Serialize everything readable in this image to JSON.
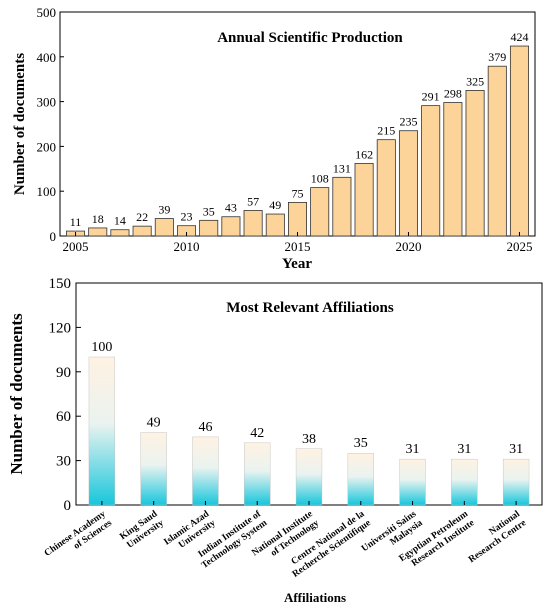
{
  "colors": {
    "top_bar_fill": "#fcd49a",
    "top_bar_stroke": "#333333",
    "bottom_bar_top": "#fff2e2",
    "bottom_bar_bottom": "#17c6dc",
    "axis": "#000000"
  },
  "chart_data": [
    {
      "type": "bar",
      "title": "Annual Scientific Production",
      "xlabel": "Year",
      "ylabel": "Number of documents",
      "x": [
        2005,
        2006,
        2007,
        2008,
        2009,
        2010,
        2011,
        2012,
        2013,
        2014,
        2015,
        2016,
        2017,
        2018,
        2019,
        2020,
        2021,
        2022,
        2023,
        2024,
        2025
      ],
      "values": [
        11,
        18,
        14,
        22,
        39,
        23,
        35,
        43,
        57,
        49,
        75,
        108,
        131,
        162,
        215,
        235,
        291,
        298,
        325,
        379,
        424
      ],
      "xticks": [
        "2005",
        "2010",
        "2015",
        "2020",
        "2025"
      ],
      "yticks": [
        "0",
        "100",
        "200",
        "300",
        "400",
        "500"
      ],
      "ylim": [
        0,
        500
      ],
      "xlim": [
        2004.3,
        2025.7
      ],
      "grid": false,
      "data_labels": true
    },
    {
      "type": "bar",
      "title": "Most Relevant Affiliations",
      "xlabel": "Affiliations",
      "ylabel": "Number of documents",
      "categories": [
        [
          "Chinese Academy",
          "of Sciences"
        ],
        [
          "King Saud",
          "University"
        ],
        [
          "Islamic Azad",
          "University"
        ],
        [
          "Indian Institute of",
          "Technology System"
        ],
        [
          "National Institute",
          "of Technology"
        ],
        [
          "Centre National de la",
          "Recherche Scientifique"
        ],
        [
          "Universiti Sains",
          "Malaysia"
        ],
        [
          "Egyptian Petroleum",
          "Research Institute"
        ],
        [
          "National",
          "Research Centre"
        ]
      ],
      "values": [
        100,
        49,
        46,
        42,
        38,
        35,
        31,
        31,
        31
      ],
      "yticks": [
        "0",
        "30",
        "60",
        "90",
        "120",
        "150"
      ],
      "ylim": [
        0,
        150
      ],
      "grid": false,
      "data_labels": true
    }
  ]
}
